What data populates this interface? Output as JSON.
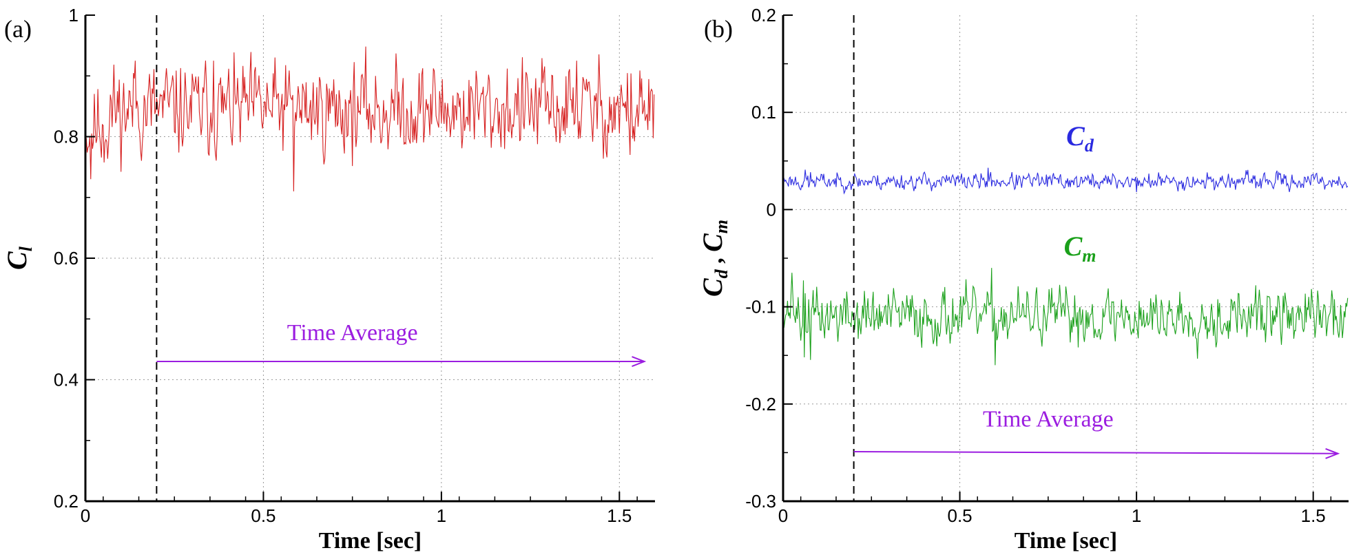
{
  "chart_data": [
    {
      "type": "line",
      "panel_label": "(a)",
      "xlabel": "Time [sec]",
      "ylabel_main": "C",
      "ylabel_sub": "l",
      "xlim": [
        0,
        1.6
      ],
      "ylim": [
        0.2,
        1.0
      ],
      "xticks": [
        0,
        0.5,
        1,
        1.5
      ],
      "xtick_labels": [
        "0",
        "0.5",
        "1",
        "1.5"
      ],
      "yticks": [
        0.2,
        0.4,
        0.6,
        0.8,
        1.0
      ],
      "ytick_labels": [
        "0.2",
        "0.4",
        "0.6",
        "0.8",
        "1"
      ],
      "grid": true,
      "vline_x": 0.2,
      "annotation": {
        "text": "Time Average",
        "arrow_from": [
          0.2,
          0.43
        ],
        "arrow_to": [
          1.57,
          0.43
        ],
        "text_at": [
          0.75,
          0.465
        ],
        "color": "#9b1de0"
      },
      "series": [
        {
          "name": "C_l",
          "color": "#d62020",
          "mean": 0.845,
          "amplitude": 0.035,
          "dt": 0.0025,
          "seed": 11,
          "start_value": 0.8,
          "spikes": [
            [
              0.015,
              0.73
            ],
            [
              0.14,
              0.925
            ],
            [
              0.36,
              0.925
            ],
            [
              0.585,
              0.71
            ],
            [
              1.38,
              0.925
            ],
            [
              1.53,
              0.77
            ]
          ]
        }
      ],
      "series_labels": []
    },
    {
      "type": "line",
      "panel_label": "(b)",
      "xlabel": "Time [sec]",
      "ylabel_main": "C",
      "ylabel_sub1": "d",
      "ylabel_sep": " ,  ",
      "ylabel_main2": "C",
      "ylabel_sub2": "m",
      "xlim": [
        0,
        1.6
      ],
      "ylim": [
        -0.3,
        0.2
      ],
      "xticks": [
        0,
        0.5,
        1,
        1.5
      ],
      "xtick_labels": [
        "0",
        "0.5",
        "1",
        "1.5"
      ],
      "yticks": [
        -0.3,
        -0.2,
        -0.1,
        0,
        0.1,
        0.2
      ],
      "ytick_labels": [
        "-0.3",
        "-0.2",
        "-0.1",
        "0",
        "0.1",
        "0.2"
      ],
      "grid": true,
      "vline_x": 0.2,
      "annotation": {
        "text": "Time Average",
        "arrow_from": [
          0.2,
          -0.249
        ],
        "arrow_to": [
          1.57,
          -0.251
        ],
        "text_at": [
          0.75,
          -0.223
        ],
        "color": "#9b1de0"
      },
      "series": [
        {
          "name": "C_d",
          "color": "#2a2ae0",
          "mean": 0.029,
          "amplitude": 0.004,
          "dt": 0.0025,
          "seed": 23,
          "start_value": 0.03,
          "spikes": [
            [
              0.58,
              0.043
            ],
            [
              1.0,
              0.018
            ]
          ]
        },
        {
          "name": "C_m",
          "color": "#1aa01a",
          "mean": -0.11,
          "amplitude": 0.013,
          "dt": 0.0025,
          "seed": 37,
          "start_value": -0.1,
          "spikes": [
            [
              0.025,
              -0.065
            ],
            [
              0.06,
              -0.152
            ],
            [
              0.59,
              -0.06
            ],
            [
              0.6,
              -0.16
            ]
          ]
        }
      ],
      "series_labels": [
        {
          "main": "C",
          "sub": "d",
          "x": 0.84,
          "y": 0.066,
          "color": "#2a2ae0"
        },
        {
          "main": "C",
          "sub": "m",
          "x": 0.84,
          "y": -0.047,
          "color": "#1aa01a"
        }
      ]
    }
  ]
}
